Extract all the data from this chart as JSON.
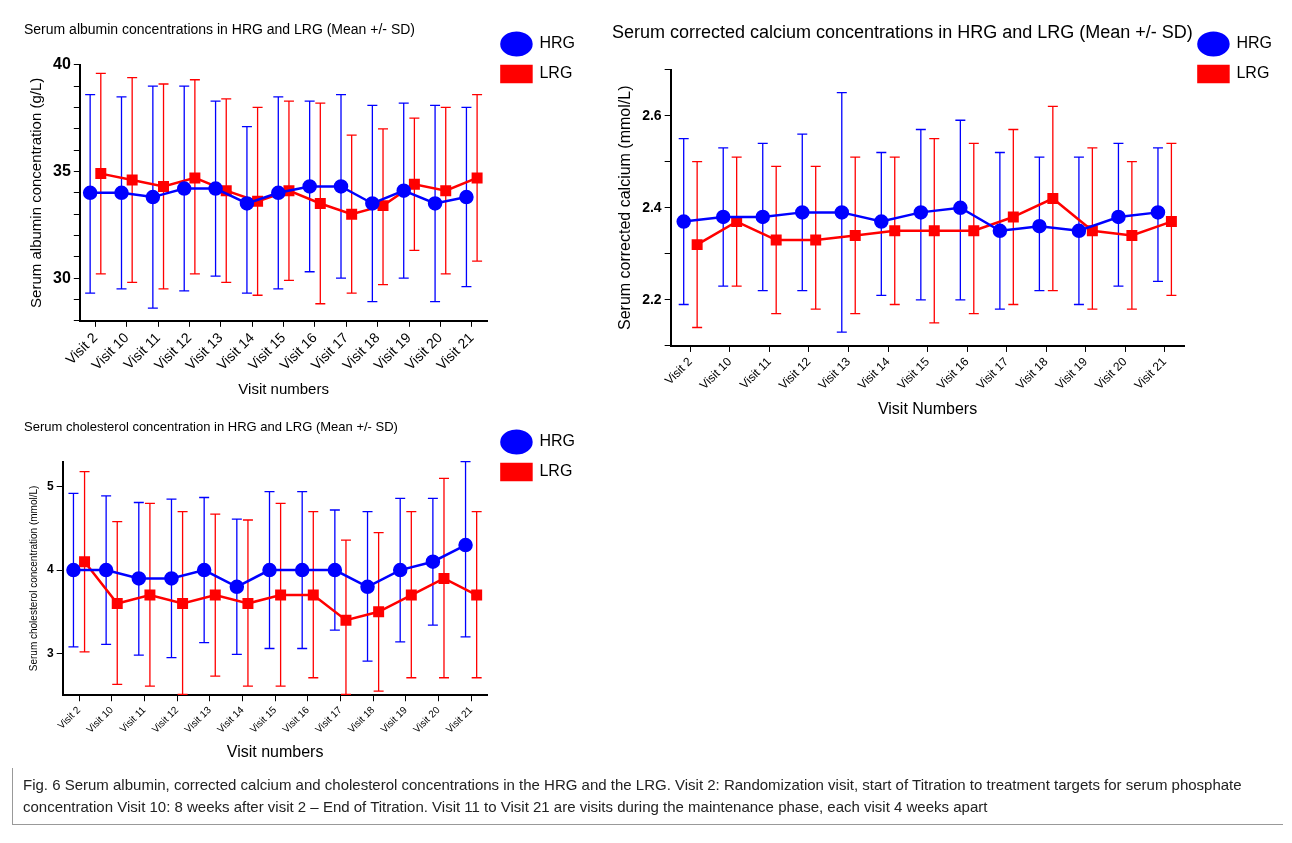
{
  "chart_data": [
    {
      "type": "line",
      "title": "Serum albumin concentrations in HRG and LRG (Mean +/- SD)",
      "xlabel": "Visit numbers",
      "ylabel": "Serum albumin concentration (g/L)",
      "categories": [
        "Visit 2",
        "Visit 10",
        "Visit 11",
        "Visit 12",
        "Visit 13",
        "Visit 14",
        "Visit 15",
        "Visit 16",
        "Visit 17",
        "Visit 18",
        "Visit 19",
        "Visit 20",
        "Visit 21"
      ],
      "ylim": [
        28,
        40
      ],
      "yticks": [
        {
          "value": 28,
          "label": null
        },
        {
          "value": 29,
          "label": null
        },
        30,
        {
          "value": 31,
          "label": null
        },
        {
          "value": 32,
          "label": null
        },
        {
          "value": 33,
          "label": null
        },
        {
          "value": 34,
          "label": null
        },
        35,
        {
          "value": 36,
          "label": null
        },
        {
          "value": 37,
          "label": null
        },
        {
          "value": 38,
          "label": null
        },
        {
          "value": 39,
          "label": null
        },
        40
      ],
      "grid": false,
      "legend": "right",
      "line_style": "solid",
      "series": [
        {
          "name": "HRG",
          "color": "#0000ff",
          "marker": "circle",
          "values": [
            34.0,
            34.0,
            33.8,
            34.2,
            34.2,
            33.5,
            34.0,
            34.3,
            34.3,
            33.5,
            34.1,
            33.5,
            33.8
          ],
          "errors": [
            [
              29.3,
              38.6
            ],
            [
              29.5,
              38.5
            ],
            [
              28.6,
              39.0
            ],
            [
              29.4,
              39.0
            ],
            [
              30.1,
              38.3
            ],
            [
              29.3,
              37.1
            ],
            [
              29.5,
              38.5
            ],
            [
              30.3,
              38.3
            ],
            [
              30.0,
              38.6
            ],
            [
              28.9,
              38.1
            ],
            [
              30.0,
              38.2
            ],
            [
              28.9,
              38.1
            ],
            [
              29.6,
              38.0
            ]
          ]
        },
        {
          "name": "LRG",
          "color": "#ff0000",
          "marker": "square",
          "values": [
            34.9,
            34.6,
            34.3,
            34.7,
            34.1,
            33.6,
            34.1,
            33.5,
            33.0,
            33.4,
            34.4,
            34.1,
            34.7
          ],
          "errors": [
            [
              30.2,
              39.6
            ],
            [
              29.8,
              39.4
            ],
            [
              29.5,
              39.1
            ],
            [
              30.2,
              39.3
            ],
            [
              29.8,
              38.4
            ],
            [
              29.2,
              38.0
            ],
            [
              29.9,
              38.3
            ],
            [
              28.8,
              38.2
            ],
            [
              29.3,
              36.7
            ],
            [
              29.7,
              37.0
            ],
            [
              31.3,
              37.5
            ],
            [
              30.2,
              38.0
            ],
            [
              30.8,
              38.6
            ]
          ]
        }
      ]
    },
    {
      "type": "line",
      "title": "Serum corrected calcium concentrations in HRG and LRG (Mean +/- SD)",
      "xlabel": "Visit Numbers",
      "ylabel": "Serum corrected calcium (mmol/L)",
      "categories": [
        "Visit 2",
        "Visit 10",
        "Visit 11",
        "Visit 12",
        "Visit 13",
        "Visit 14",
        "Visit 15",
        "Visit 16",
        "Visit 17",
        "Visit 18",
        "Visit 19",
        "Visit 20",
        "Visit 21"
      ],
      "ylim": [
        2.1,
        2.7
      ],
      "yticks": [
        {
          "value": 2.1,
          "label": null
        },
        2.2,
        {
          "value": 2.3,
          "label": null
        },
        2.4,
        {
          "value": 2.5,
          "label": null
        },
        2.6,
        {
          "value": 2.7,
          "label": null
        }
      ],
      "grid": false,
      "legend": "right",
      "line_style": "solid",
      "series": [
        {
          "name": "HRG",
          "color": "#0000ff",
          "marker": "circle",
          "values": [
            2.37,
            2.38,
            2.38,
            2.39,
            2.39,
            2.37,
            2.39,
            2.4,
            2.35,
            2.36,
            2.35,
            2.38,
            2.39
          ],
          "errors": [
            [
              2.19,
              2.55
            ],
            [
              2.23,
              2.53
            ],
            [
              2.22,
              2.54
            ],
            [
              2.22,
              2.56
            ],
            [
              2.13,
              2.65
            ],
            [
              2.21,
              2.52
            ],
            [
              2.2,
              2.57
            ],
            [
              2.2,
              2.59
            ],
            [
              2.18,
              2.52
            ],
            [
              2.22,
              2.51
            ],
            [
              2.19,
              2.51
            ],
            [
              2.23,
              2.54
            ],
            [
              2.24,
              2.53
            ]
          ]
        },
        {
          "name": "LRG",
          "color": "#ff0000",
          "marker": "square",
          "values": [
            2.32,
            2.37,
            2.33,
            2.33,
            2.34,
            2.35,
            2.35,
            2.35,
            2.38,
            2.42,
            2.35,
            2.34,
            2.37
          ],
          "errors": [
            [
              2.14,
              2.5
            ],
            [
              2.23,
              2.51
            ],
            [
              2.17,
              2.49
            ],
            [
              2.18,
              2.49
            ],
            [
              2.17,
              2.51
            ],
            [
              2.19,
              2.51
            ],
            [
              2.15,
              2.55
            ],
            [
              2.17,
              2.54
            ],
            [
              2.19,
              2.57
            ],
            [
              2.22,
              2.62
            ],
            [
              2.18,
              2.53
            ],
            [
              2.18,
              2.5
            ],
            [
              2.21,
              2.54
            ]
          ]
        }
      ]
    },
    {
      "type": "line",
      "title": "Serum cholesterol concentration in HRG and LRG (Mean +/- SD)",
      "xlabel": "Visit numbers",
      "ylabel": "Serum cholesterol concentration (mmol/L)",
      "categories": [
        "Visit 2",
        "Visit 10",
        "Visit 11",
        "Visit 12",
        "Visit 13",
        "Visit 14",
        "Visit 15",
        "Visit 16",
        "Visit 17",
        "Visit 18",
        "Visit 19",
        "Visit 20",
        "Visit 21"
      ],
      "ylim": [
        2.5,
        5.3
      ],
      "yticks": [
        3,
        4,
        5
      ],
      "grid": false,
      "legend": "right",
      "line_style": "solid",
      "annotations": [
        "Fig. 6 Serum albumin, corrected calcium and cholesterol concentrations in the HRG and the LRG. Visit 2: Randomization visit, start of Titration to treatment targets for serum phosphate concentration Visit 10: 8 weeks after visit 2 – End of Titration. Visit 11 to Visit 21 are visits during the maintenance phase, each visit 4 weeks apart"
      ],
      "series": [
        {
          "name": "HRG",
          "color": "#0000ff",
          "marker": "circle",
          "values": [
            4.0,
            4.0,
            3.9,
            3.9,
            4.0,
            3.8,
            4.0,
            4.0,
            4.0,
            3.8,
            4.0,
            4.1,
            4.3
          ],
          "errors": [
            [
              3.08,
              4.92
            ],
            [
              3.11,
              4.89
            ],
            [
              2.98,
              4.81
            ],
            [
              2.95,
              4.85
            ],
            [
              3.13,
              4.87
            ],
            [
              2.99,
              4.61
            ],
            [
              3.06,
              4.94
            ],
            [
              3.06,
              4.94
            ],
            [
              3.28,
              4.72
            ],
            [
              2.91,
              4.7
            ],
            [
              3.14,
              4.86
            ],
            [
              3.34,
              4.86
            ],
            [
              3.2,
              5.3
            ]
          ]
        },
        {
          "name": "LRG",
          "color": "#ff0000",
          "marker": "square",
          "values": [
            4.1,
            3.6,
            3.7,
            3.6,
            3.7,
            3.6,
            3.7,
            3.7,
            3.4,
            3.5,
            3.7,
            3.9,
            3.7
          ],
          "errors": [
            [
              3.02,
              5.18
            ],
            [
              2.63,
              4.58
            ],
            [
              2.61,
              4.8
            ],
            [
              2.51,
              4.7
            ],
            [
              2.73,
              4.67
            ],
            [
              2.61,
              4.6
            ],
            [
              2.61,
              4.8
            ],
            [
              2.71,
              4.7
            ],
            [
              2.51,
              4.36
            ],
            [
              2.55,
              4.45
            ],
            [
              2.71,
              4.7
            ],
            [
              2.71,
              5.1
            ],
            [
              2.71,
              4.7
            ]
          ]
        }
      ]
    }
  ]
}
